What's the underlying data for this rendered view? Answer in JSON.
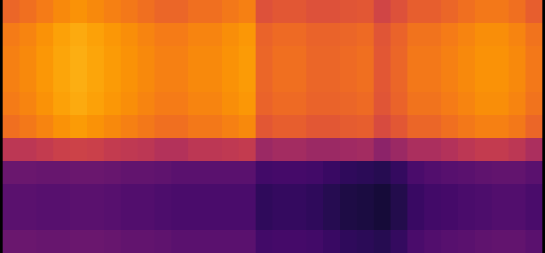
{
  "chart_data": {
    "type": "heatmap",
    "color": "inferno",
    "tick_labels": false,
    "color_range": [
      0,
      1
    ],
    "cells": [
      [
        0.66,
        0.68,
        0.71,
        0.74,
        0.76,
        0.74,
        0.72,
        0.7,
        0.68,
        0.66,
        0.66,
        0.68,
        0.68,
        0.7,
        0.72,
        0.6,
        0.62,
        0.62,
        0.6,
        0.6,
        0.61,
        0.62,
        0.56,
        0.6,
        0.64,
        0.64,
        0.66,
        0.68,
        0.7,
        0.7,
        0.68,
        0.64
      ],
      [
        0.71,
        0.73,
        0.76,
        0.79,
        0.81,
        0.79,
        0.77,
        0.75,
        0.73,
        0.71,
        0.71,
        0.73,
        0.73,
        0.75,
        0.77,
        0.65,
        0.67,
        0.67,
        0.65,
        0.65,
        0.66,
        0.67,
        0.61,
        0.65,
        0.69,
        0.69,
        0.71,
        0.73,
        0.75,
        0.75,
        0.73,
        0.69
      ],
      [
        0.72,
        0.74,
        0.77,
        0.8,
        0.82,
        0.8,
        0.78,
        0.76,
        0.74,
        0.72,
        0.72,
        0.74,
        0.74,
        0.76,
        0.78,
        0.66,
        0.68,
        0.68,
        0.66,
        0.66,
        0.67,
        0.68,
        0.62,
        0.66,
        0.7,
        0.7,
        0.72,
        0.74,
        0.76,
        0.76,
        0.74,
        0.7
      ],
      [
        0.72,
        0.74,
        0.77,
        0.8,
        0.82,
        0.8,
        0.78,
        0.76,
        0.74,
        0.72,
        0.72,
        0.74,
        0.74,
        0.76,
        0.78,
        0.66,
        0.68,
        0.68,
        0.66,
        0.66,
        0.67,
        0.68,
        0.62,
        0.66,
        0.7,
        0.7,
        0.72,
        0.74,
        0.76,
        0.76,
        0.74,
        0.7
      ],
      [
        0.71,
        0.73,
        0.76,
        0.79,
        0.81,
        0.79,
        0.77,
        0.75,
        0.73,
        0.71,
        0.71,
        0.73,
        0.73,
        0.75,
        0.77,
        0.65,
        0.67,
        0.67,
        0.65,
        0.65,
        0.66,
        0.67,
        0.61,
        0.65,
        0.69,
        0.69,
        0.71,
        0.73,
        0.75,
        0.75,
        0.73,
        0.69
      ],
      [
        0.68,
        0.7,
        0.73,
        0.76,
        0.78,
        0.76,
        0.74,
        0.72,
        0.7,
        0.68,
        0.68,
        0.7,
        0.7,
        0.72,
        0.74,
        0.62,
        0.64,
        0.64,
        0.62,
        0.62,
        0.63,
        0.64,
        0.58,
        0.62,
        0.66,
        0.66,
        0.68,
        0.7,
        0.72,
        0.72,
        0.7,
        0.66
      ],
      [
        0.5,
        0.5,
        0.52,
        0.54,
        0.55,
        0.54,
        0.52,
        0.51,
        0.5,
        0.48,
        0.48,
        0.5,
        0.5,
        0.51,
        0.52,
        0.42,
        0.44,
        0.44,
        0.42,
        0.42,
        0.43,
        0.44,
        0.38,
        0.42,
        0.46,
        0.46,
        0.48,
        0.5,
        0.52,
        0.52,
        0.5,
        0.46
      ],
      [
        0.3,
        0.3,
        0.29,
        0.29,
        0.3,
        0.3,
        0.29,
        0.28,
        0.28,
        0.27,
        0.26,
        0.26,
        0.26,
        0.26,
        0.26,
        0.2,
        0.21,
        0.21,
        0.2,
        0.18,
        0.16,
        0.15,
        0.14,
        0.17,
        0.22,
        0.24,
        0.25,
        0.26,
        0.27,
        0.28,
        0.28,
        0.26
      ],
      [
        0.26,
        0.26,
        0.25,
        0.25,
        0.26,
        0.26,
        0.25,
        0.24,
        0.24,
        0.23,
        0.22,
        0.22,
        0.22,
        0.22,
        0.22,
        0.16,
        0.17,
        0.17,
        0.16,
        0.14,
        0.12,
        0.11,
        0.1,
        0.13,
        0.18,
        0.2,
        0.21,
        0.22,
        0.23,
        0.24,
        0.24,
        0.22
      ],
      [
        0.26,
        0.26,
        0.25,
        0.25,
        0.26,
        0.26,
        0.25,
        0.24,
        0.24,
        0.23,
        0.22,
        0.22,
        0.22,
        0.22,
        0.22,
        0.16,
        0.17,
        0.17,
        0.16,
        0.14,
        0.12,
        0.11,
        0.1,
        0.13,
        0.18,
        0.2,
        0.21,
        0.22,
        0.23,
        0.24,
        0.24,
        0.22
      ],
      [
        0.3,
        0.3,
        0.29,
        0.29,
        0.3,
        0.3,
        0.29,
        0.28,
        0.28,
        0.27,
        0.26,
        0.26,
        0.26,
        0.26,
        0.26,
        0.2,
        0.21,
        0.21,
        0.2,
        0.18,
        0.16,
        0.15,
        0.14,
        0.17,
        0.22,
        0.24,
        0.25,
        0.26,
        0.27,
        0.28,
        0.28,
        0.26
      ]
    ]
  }
}
